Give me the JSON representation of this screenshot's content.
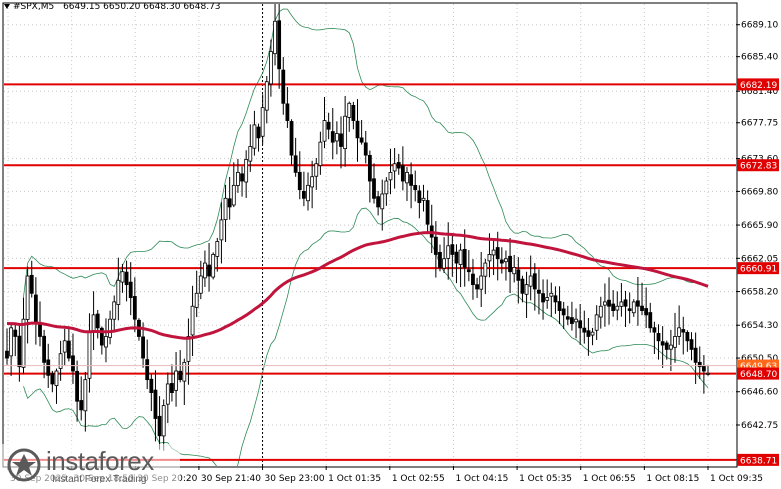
{
  "header": {
    "symbol": "#SPX,M5",
    "ohlc": "6649.15 6650.20 6648.30 6648.73"
  },
  "watermark": {
    "brand": "instaforex",
    "tagline": "Instant Forex Trading"
  },
  "colors": {
    "background": "#ffffff",
    "candles": "#000000",
    "grid": "#c8c8c8",
    "level_line": "#e00000",
    "level_badge": "#e00000",
    "ma_long": "#c0143c",
    "bands": "#2e8b57",
    "price_badge": "#ff6a1a",
    "price_line": "#e8b8b8"
  },
  "chart_data": {
    "type": "candlestick",
    "symbol": "#SPX",
    "timeframe": "M5",
    "y_range": [
      6638.0,
      6691.5
    ],
    "y_ticks": [
      "6689.10",
      "6685.40",
      "6681.40",
      "6677.75",
      "6673.60",
      "6669.80",
      "6665.90",
      "6662.05",
      "6658.20",
      "6654.30",
      "6650.50",
      "6646.60",
      "6642.75",
      "6638.71"
    ],
    "x_ticks": [
      "30 Sep 2025",
      "30 Sep 18:50",
      "30 Sep 20:20",
      "30 Sep 21:40",
      "30 Sep 23:00",
      "1 Oct 01:35",
      "1 Oct 02:55",
      "1 Oct 04:15",
      "1 Oct 05:35",
      "1 Oct 06:55",
      "1 Oct 08:15",
      "1 Oct 09:35"
    ],
    "levels": [
      "6682.19",
      "6672.83",
      "6660.91",
      "6648.70",
      "6638.71"
    ],
    "price_badges": [
      {
        "label": "6649.63",
        "value": 6649.63
      },
      {
        "label": "6648.73",
        "value": 6648.73
      }
    ],
    "session_separator_value": "30 Sep 23:00",
    "closes": [
      6650.5,
      6654.0,
      6653.0,
      6649.5,
      6655.0,
      6660.0,
      6658.0,
      6654.5,
      6653.0,
      6650.0,
      6648.5,
      6647.5,
      6649.0,
      6651.0,
      6652.5,
      6650.5,
      6649.0,
      6645.5,
      6644.5,
      6648.0,
      6653.5,
      6655.5,
      6654.0,
      6652.0,
      6653.0,
      6655.0,
      6657.0,
      6659.5,
      6660.5,
      6659.0,
      6657.5,
      6655.0,
      6653.0,
      6650.5,
      6648.0,
      6646.5,
      6643.5,
      6641.5,
      6645.0,
      6647.5,
      6646.5,
      6649.0,
      6648.0,
      6650.0,
      6653.0,
      6656.5,
      6658.0,
      6660.0,
      6661.5,
      6660.0,
      6662.5,
      6664.0,
      6666.5,
      6669.0,
      6668.0,
      6670.5,
      6672.0,
      6671.0,
      6673.5,
      6675.0,
      6677.5,
      6676.0,
      6679.5,
      6682.5,
      6686.0,
      6689.5,
      6684.0,
      6680.0,
      6678.0,
      6674.0,
      6672.0,
      6670.0,
      6669.0,
      6670.5,
      6671.5,
      6673.0,
      6675.5,
      6678.0,
      6677.0,
      6675.5,
      6676.5,
      6675.0,
      6678.5,
      6680.0,
      6678.0,
      6676.0,
      6675.5,
      6674.0,
      6671.0,
      6669.0,
      6668.0,
      6669.5,
      6671.0,
      6672.0,
      6673.0,
      6672.5,
      6671.0,
      6672.0,
      6670.5,
      6670.0,
      6668.5,
      6669.0,
      6666.0,
      6664.5,
      6662.5,
      6661.0,
      6662.0,
      6663.5,
      6662.5,
      6661.5,
      6663.0,
      6661.0,
      6660.5,
      6659.0,
      6658.5,
      6660.0,
      6661.5,
      6662.5,
      6663.0,
      6662.0,
      6661.5,
      6662.0,
      6660.5,
      6661.0,
      6659.5,
      6658.0,
      6659.0,
      6660.0,
      6658.5,
      6658.0,
      6657.0,
      6657.5,
      6658.0,
      6657.0,
      6656.0,
      6655.5,
      6655.0,
      6654.5,
      6655.0,
      6654.0,
      6653.5,
      6653.0,
      6653.5,
      6655.5,
      6656.5,
      6657.0,
      6656.5,
      6656.0,
      6656.5,
      6657.0,
      6656.5,
      6656.0,
      6657.0,
      6656.5,
      6656.0,
      6655.5,
      6654.0,
      6653.5,
      6652.5,
      6652.0,
      6651.5,
      6652.0,
      6653.0,
      6654.0,
      6653.5,
      6652.5,
      6651.5,
      6650.0,
      6649.5,
      6649.0,
      6648.73
    ]
  }
}
